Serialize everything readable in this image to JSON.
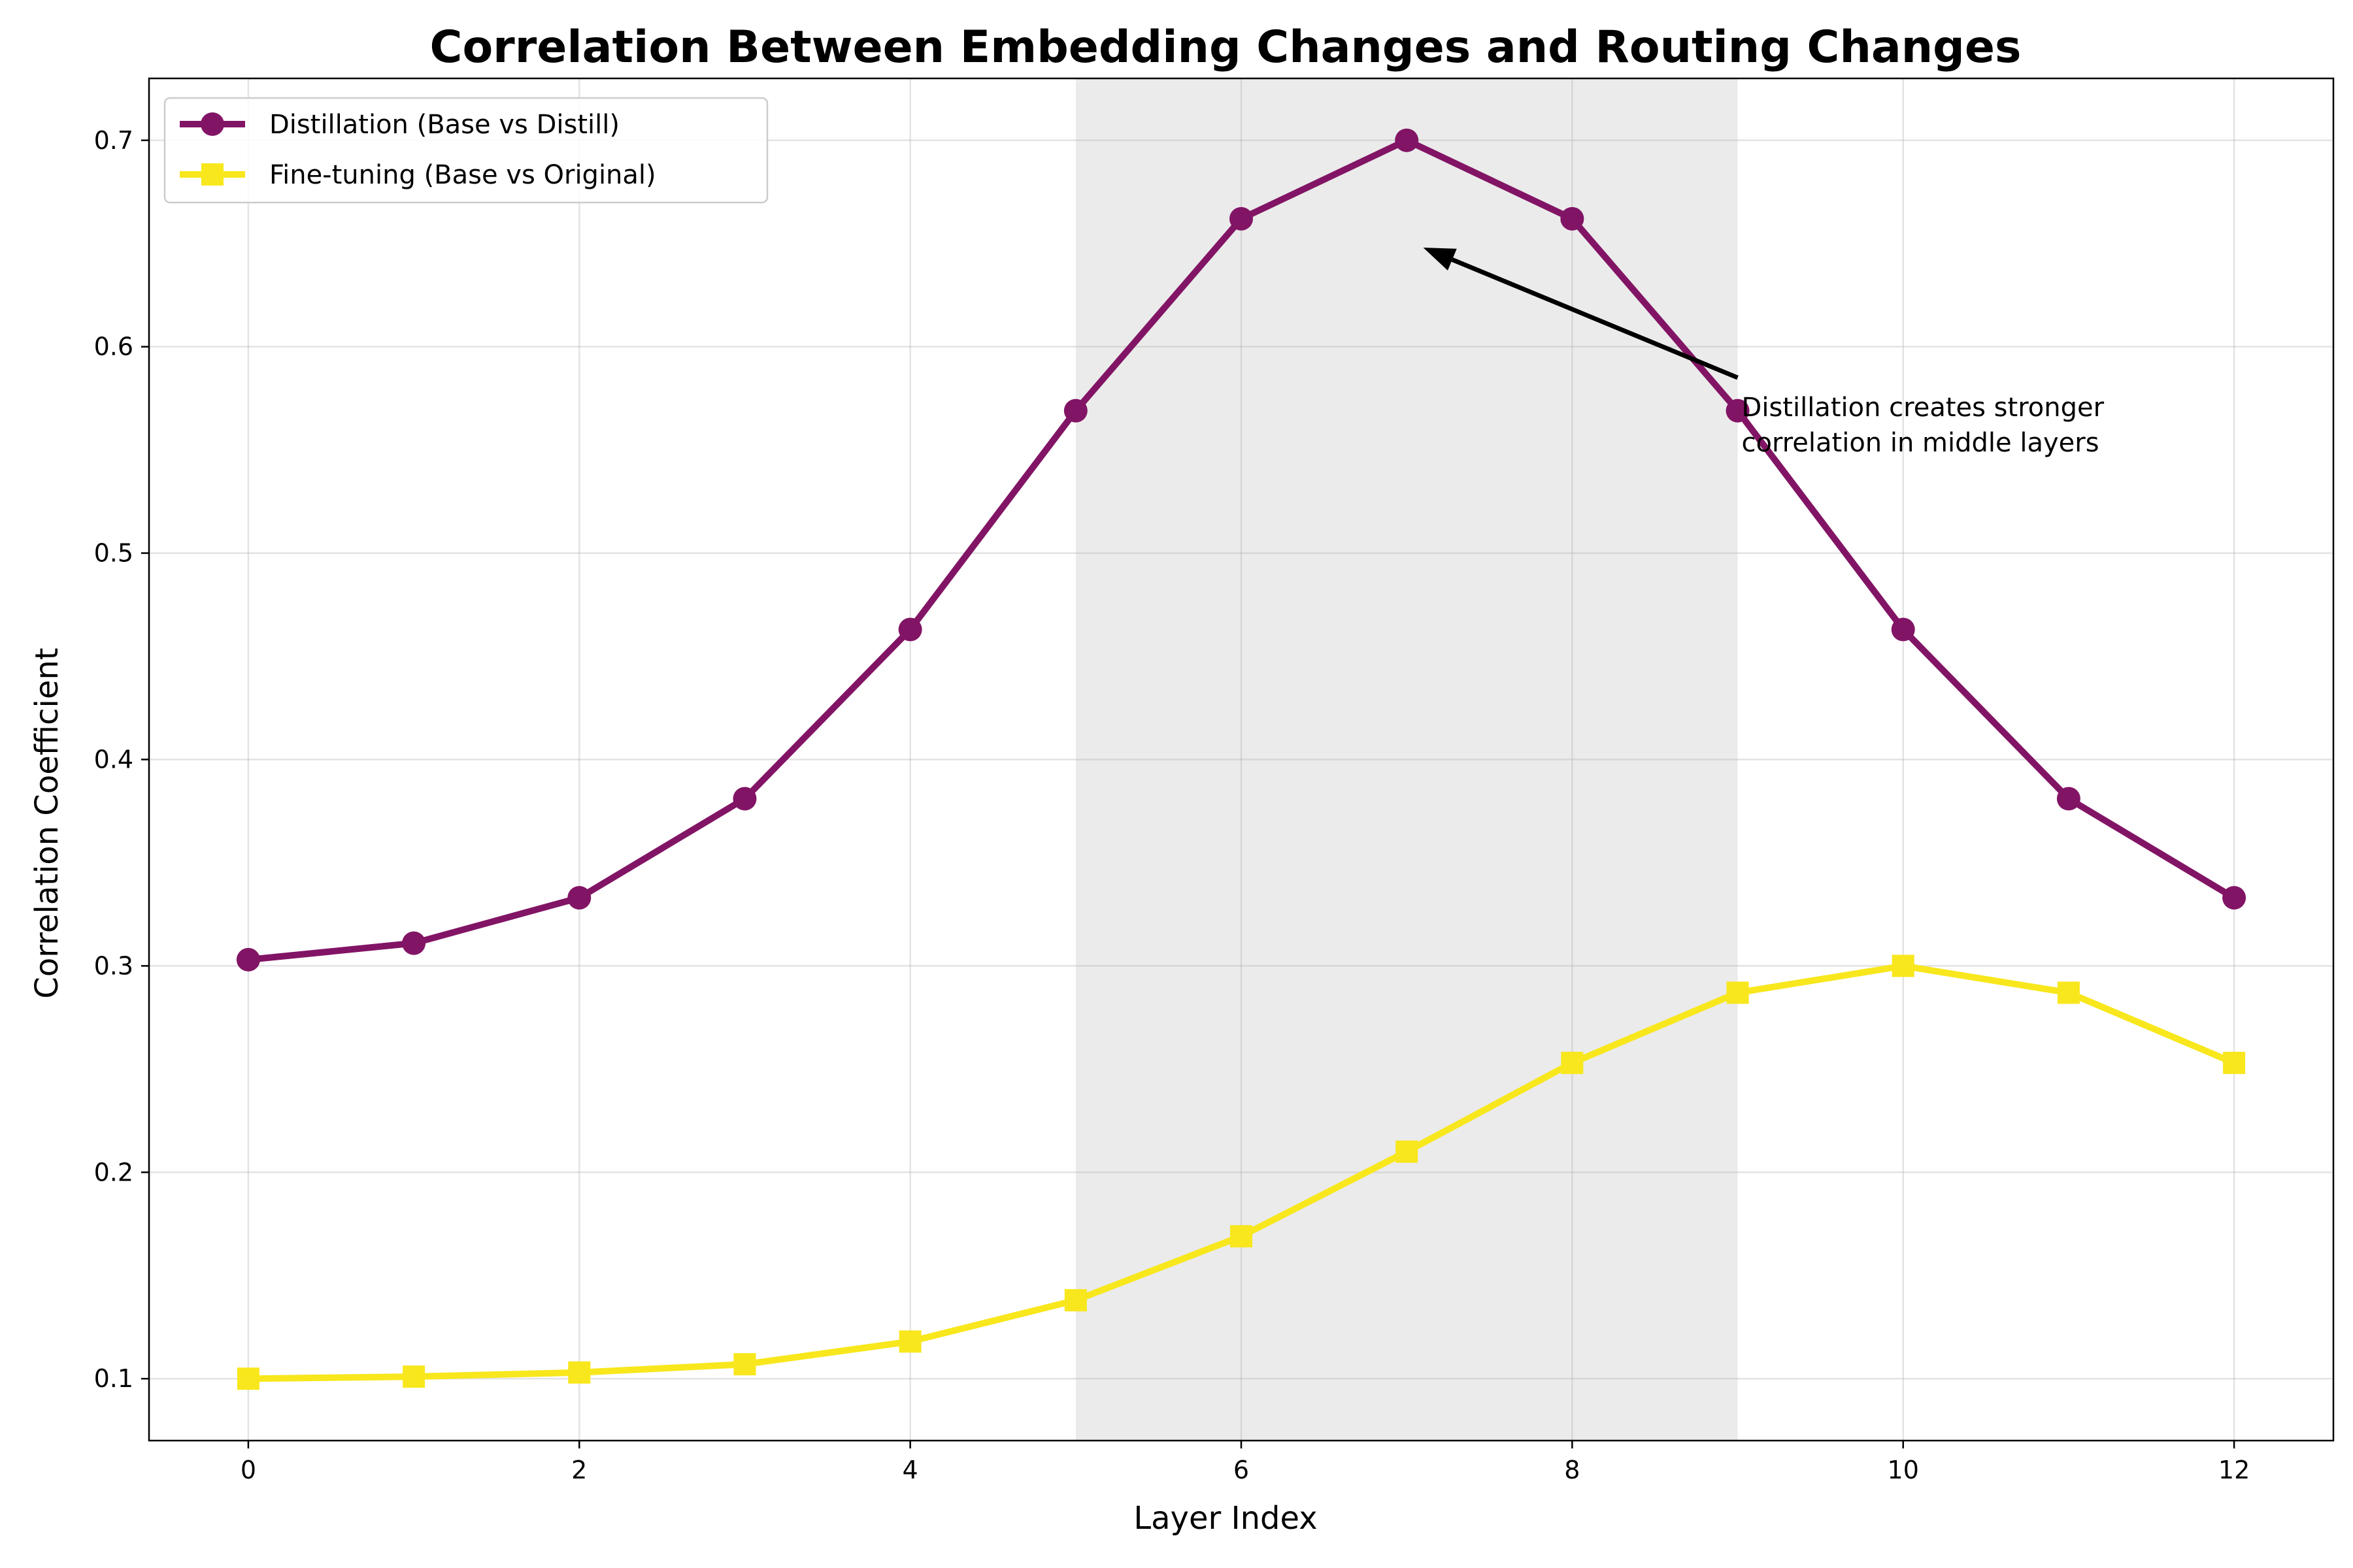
{
  "chart_data": {
    "type": "line",
    "title": "Correlation Between Embedding Changes and Routing Changes",
    "xlabel": "Layer Index",
    "ylabel": "Correlation Coefficient",
    "x": [
      0,
      1,
      2,
      3,
      4,
      5,
      6,
      7,
      8,
      9,
      10,
      11,
      12
    ],
    "xlim": [
      -0.6,
      12.6
    ],
    "ylim": [
      0.07,
      0.73
    ],
    "xticks": [
      0,
      2,
      4,
      6,
      8,
      10,
      12
    ],
    "yticks": [
      0.1,
      0.2,
      0.3,
      0.4,
      0.5,
      0.6,
      0.7
    ],
    "xtick_labels": [
      "0",
      "2",
      "4",
      "6",
      "8",
      "10",
      "12"
    ],
    "ytick_labels": [
      "0.1",
      "0.2",
      "0.3",
      "0.4",
      "0.5",
      "0.6",
      "0.7"
    ],
    "grid": true,
    "legend_position": "top-left",
    "highlight_span": [
      5,
      9
    ],
    "highlight_color": "#ebebeb",
    "series": [
      {
        "name": "Distillation (Base vs Distill)",
        "color": "#821465",
        "marker": "circle",
        "values": [
          0.303,
          0.311,
          0.333,
          0.381,
          0.463,
          0.569,
          0.662,
          0.7,
          0.662,
          0.569,
          0.463,
          0.381,
          0.333
        ]
      },
      {
        "name": "Fine-tuning (Base vs Original)",
        "color": "#f8e71c",
        "marker": "square",
        "values": [
          0.1,
          0.101,
          0.103,
          0.107,
          0.118,
          0.138,
          0.169,
          0.21,
          0.253,
          0.287,
          0.3,
          0.287,
          0.253
        ]
      }
    ],
    "annotation": {
      "lines": [
        "Distillation creates stronger",
        "correlation in middle layers"
      ],
      "arrow_from": [
        9.0,
        0.585
      ],
      "arrow_to": [
        7.1,
        0.648
      ]
    }
  }
}
